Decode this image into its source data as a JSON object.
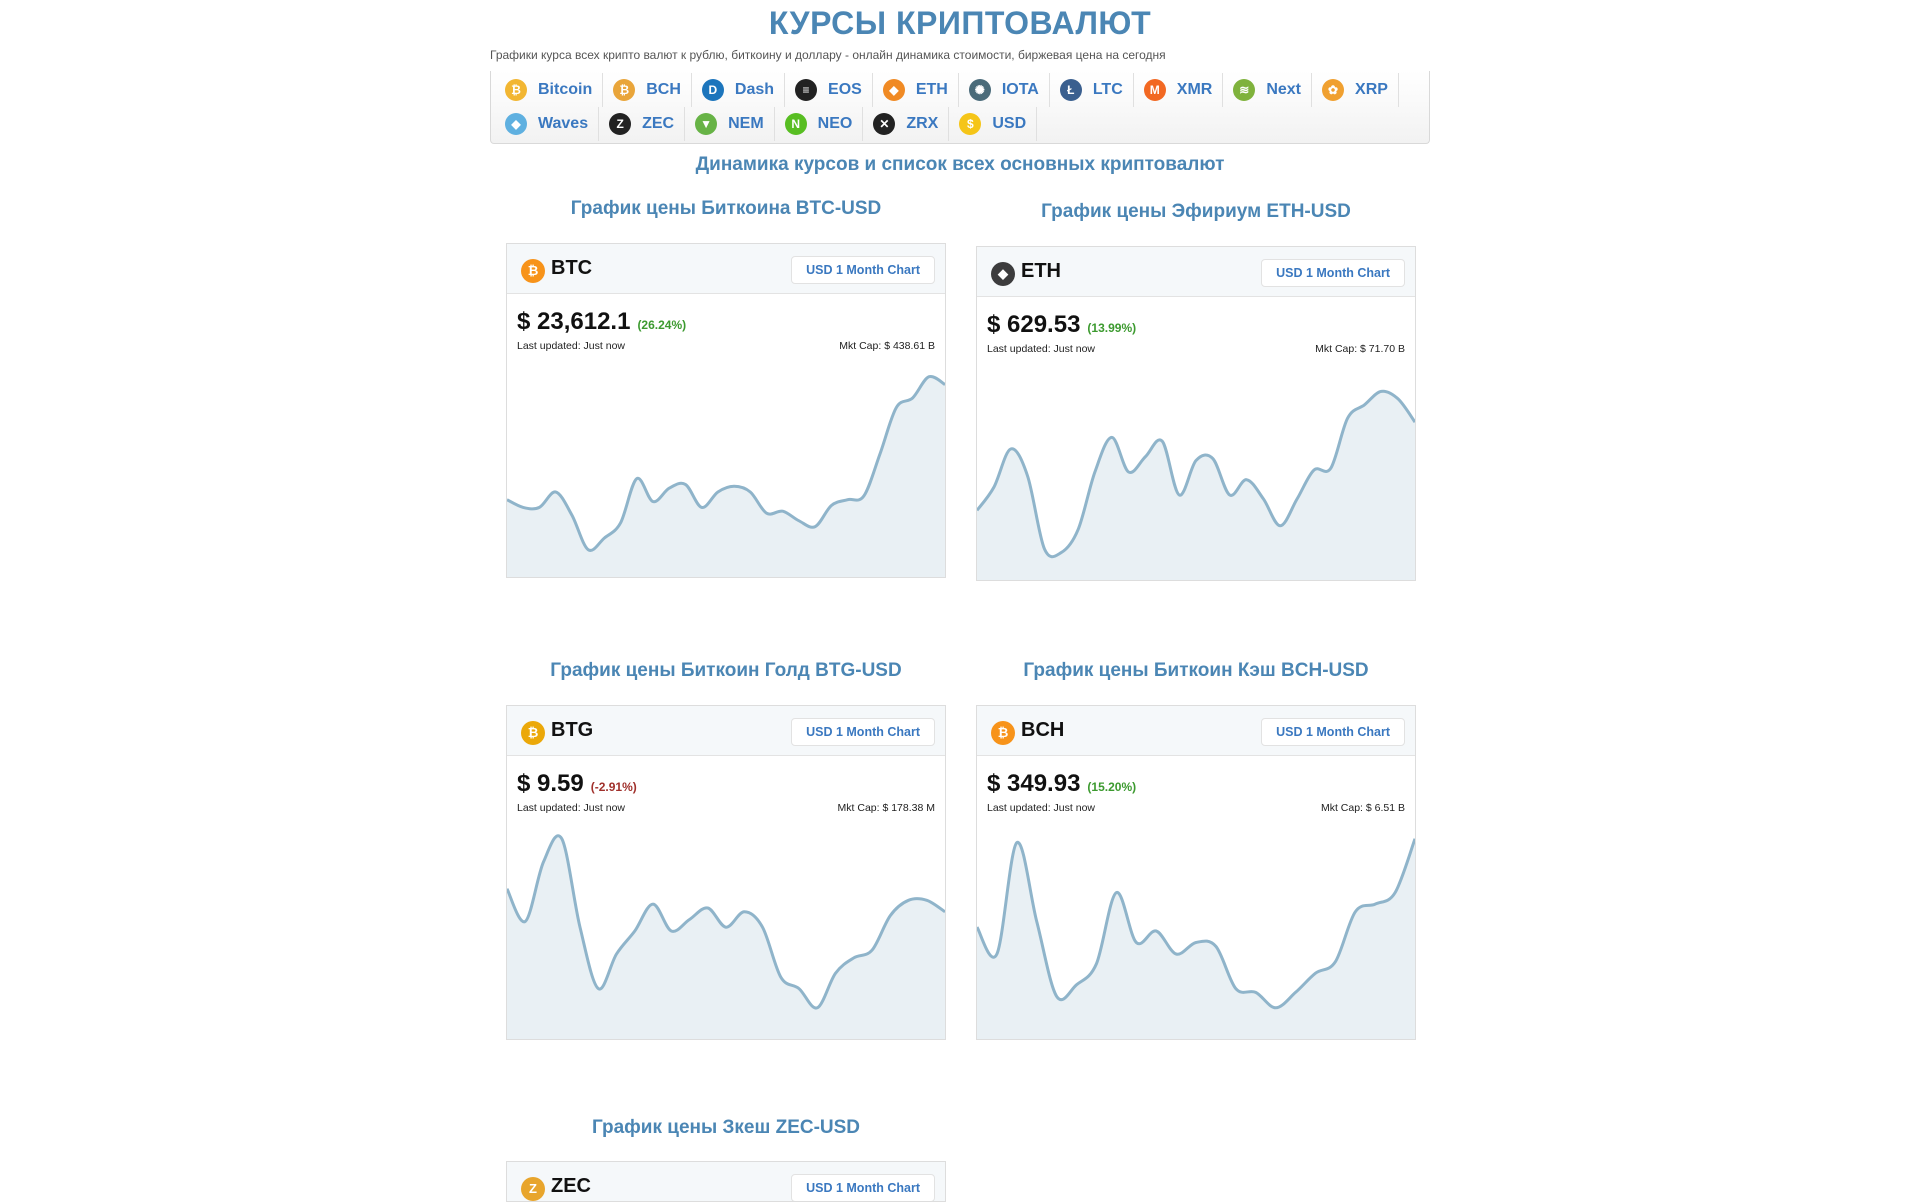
{
  "header": {
    "title": "КУРСЫ КРИПТОВАЛЮТ",
    "subtitle": "Графики курса всех крипто валют к рублю, биткоину и доллару - онлайн динамика стоимости, биржевая цена на сегодня"
  },
  "nav": {
    "items": [
      {
        "label": "Bitcoin",
        "icon": "bitcoin-icon",
        "color": "#f2b632",
        "glyph": "₿"
      },
      {
        "label": "BCH",
        "icon": "bitcoin-cash-icon",
        "color": "#e9a53a",
        "glyph": "₿"
      },
      {
        "label": "Dash",
        "icon": "dash-icon",
        "color": "#1c75bc",
        "glyph": "D"
      },
      {
        "label": "EOS",
        "icon": "eos-icon",
        "color": "#222222",
        "glyph": "≡"
      },
      {
        "label": "ETH",
        "icon": "ethereum-icon",
        "color": "#f08a24",
        "glyph": "◆"
      },
      {
        "label": "IOTA",
        "icon": "iota-icon",
        "color": "#4a6b7a",
        "glyph": "✺"
      },
      {
        "label": "LTC",
        "icon": "litecoin-icon",
        "color": "#3a5f8f",
        "glyph": "Ł"
      },
      {
        "label": "XMR",
        "icon": "monero-icon",
        "color": "#f26822",
        "glyph": "M"
      },
      {
        "label": "Next",
        "icon": "nxt-icon",
        "color": "#7fb23c",
        "glyph": "≋"
      },
      {
        "label": "XRP",
        "icon": "ripple-icon",
        "color": "#f0a030",
        "glyph": "✿"
      },
      {
        "label": "Waves",
        "icon": "waves-icon",
        "color": "#5fb0e0",
        "glyph": "◆"
      },
      {
        "label": "ZEC",
        "icon": "zcash-icon",
        "color": "#222222",
        "glyph": "Z"
      },
      {
        "label": "NEM",
        "icon": "nem-icon",
        "color": "#67b346",
        "glyph": "▼"
      },
      {
        "label": "NEO",
        "icon": "neo-icon",
        "color": "#58be22",
        "glyph": "N"
      },
      {
        "label": "ZRX",
        "icon": "zrx-icon",
        "color": "#222222",
        "glyph": "✕"
      },
      {
        "label": "USD",
        "icon": "dollar-coin-icon",
        "color": "#f5c518",
        "glyph": "$"
      }
    ]
  },
  "section_title": "Динамика курсов и список всех основных криптовалют",
  "charts": [
    {
      "title": "График цены Биткоина BTC-USD",
      "symbol": "BTC",
      "icon": "bitcoin-icon",
      "color": "#f7931a",
      "glyph": "₿",
      "button": "USD 1 Month Chart",
      "price": "$ 23,612.1",
      "change": "(26.24%)",
      "trend": "up",
      "updated": "Last updated: Just now",
      "mktcap": "Mkt Cap: $ 438.61 B",
      "series": [
        0.34,
        0.3,
        0.3,
        0.38,
        0.26,
        0.08,
        0.14,
        0.22,
        0.45,
        0.33,
        0.4,
        0.42,
        0.3,
        0.38,
        0.41,
        0.38,
        0.27,
        0.28,
        0.23,
        0.2,
        0.31,
        0.34,
        0.36,
        0.58,
        0.82,
        0.87,
        0.98,
        0.94
      ]
    },
    {
      "title": "График цены Эфириум ETH-USD",
      "symbol": "ETH",
      "icon": "ethereum-icon",
      "color": "#3c3c3d",
      "glyph": "◆",
      "button": "USD 1 Month Chart",
      "price": "$ 629.53",
      "change": "(13.99%)",
      "trend": "up",
      "updated": "Last updated: Just now",
      "mktcap": "Mkt Cap: $ 71.70 B",
      "series": [
        0.3,
        0.42,
        0.62,
        0.48,
        0.1,
        0.08,
        0.2,
        0.5,
        0.68,
        0.5,
        0.58,
        0.66,
        0.38,
        0.56,
        0.57,
        0.38,
        0.46,
        0.36,
        0.22,
        0.36,
        0.51,
        0.52,
        0.78,
        0.85,
        0.92,
        0.88,
        0.76
      ]
    },
    {
      "title": "График цены Биткоин Голд BTG-USD",
      "symbol": "BTG",
      "icon": "bitcoin-gold-icon",
      "color": "#eba809",
      "glyph": "₿",
      "button": "USD 1 Month Chart",
      "price": "$ 9.59",
      "change": "(-2.91%)",
      "trend": "down",
      "updated": "Last updated: Just now",
      "mktcap": "Mkt Cap: $ 178.38 M",
      "series": [
        0.72,
        0.55,
        0.86,
        0.98,
        0.52,
        0.2,
        0.38,
        0.5,
        0.64,
        0.5,
        0.56,
        0.62,
        0.52,
        0.6,
        0.52,
        0.26,
        0.2,
        0.1,
        0.28,
        0.36,
        0.4,
        0.58,
        0.66,
        0.66,
        0.6
      ]
    },
    {
      "title": "График цены Биткоин Кэш BCH-USD",
      "symbol": "BCH",
      "icon": "bitcoin-cash-icon",
      "color": "#f7931a",
      "glyph": "₿",
      "button": "USD 1 Month Chart",
      "price": "$ 349.93",
      "change": "(15.20%)",
      "trend": "up",
      "updated": "Last updated: Just now",
      "mktcap": "Mkt Cap: $ 6.51 B",
      "series": [
        0.52,
        0.38,
        0.96,
        0.55,
        0.16,
        0.22,
        0.33,
        0.7,
        0.44,
        0.5,
        0.38,
        0.44,
        0.42,
        0.2,
        0.18,
        0.1,
        0.18,
        0.28,
        0.34,
        0.6,
        0.64,
        0.7,
        0.98
      ]
    },
    {
      "title": "График цены Зкеш ZEC-USD",
      "symbol": "ZEC",
      "icon": "zcash-icon",
      "color": "#e8a52c",
      "glyph": "Z",
      "button": "USD 1 Month Chart",
      "price": "",
      "change": "",
      "trend": "up",
      "updated": "",
      "mktcap": "",
      "series": []
    }
  ]
}
